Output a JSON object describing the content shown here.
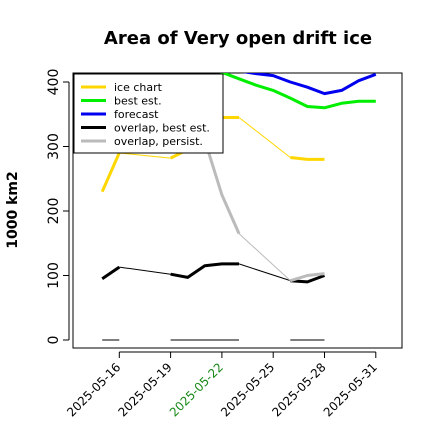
{
  "chart_data": {
    "type": "line",
    "title": "Area of Very open drift ice",
    "ylabel": "1000 km2",
    "xlabel": "",
    "ylim": [
      0,
      420
    ],
    "yticks": [
      0,
      100,
      200,
      300,
      400
    ],
    "xlim": [
      "2025-05-13",
      "2025-06-01"
    ],
    "xticks": [
      {
        "label": "2025-05-16",
        "color": "#000000"
      },
      {
        "label": "2025-05-19",
        "color": "#000000"
      },
      {
        "label": "2025-05-22",
        "color": "#1a8a1a"
      },
      {
        "label": "2025-05-25",
        "color": "#000000"
      },
      {
        "label": "2025-05-28",
        "color": "#000000"
      },
      {
        "label": "2025-05-31",
        "color": "#000000"
      }
    ],
    "legend_position": "top-left",
    "series": [
      {
        "name": "ice chart",
        "color": "#ffd700",
        "width": 3,
        "segments": [
          [
            [
              "2025-05-15",
              230
            ],
            [
              "2025-05-16",
              290
            ]
          ],
          [
            [
              "2025-05-19",
              282
            ],
            [
              "2025-05-20",
              295
            ]
          ],
          [
            [
              "2025-05-22",
              345
            ],
            [
              "2025-05-23",
              345
            ]
          ],
          [
            [
              "2025-05-26",
              283
            ],
            [
              "2025-05-27",
              280
            ],
            [
              "2025-05-28",
              280
            ]
          ]
        ],
        "connectors": true
      },
      {
        "name": "best est.",
        "color": "#00ee00",
        "width": 3,
        "segments": [
          [
            [
              "2025-05-21",
              425
            ],
            [
              "2025-05-22",
              415
            ],
            [
              "2025-05-23",
              405
            ],
            [
              "2025-05-24",
              395
            ],
            [
              "2025-05-25",
              387
            ],
            [
              "2025-05-26",
              375
            ],
            [
              "2025-05-27",
              362
            ],
            [
              "2025-05-28",
              360
            ],
            [
              "2025-05-29",
              367
            ],
            [
              "2025-05-30",
              370
            ],
            [
              "2025-05-31",
              370
            ]
          ]
        ],
        "connectors": false
      },
      {
        "name": "forecast",
        "color": "#0000ee",
        "width": 3,
        "segments": [
          [
            [
              "2025-05-21",
              430
            ],
            [
              "2025-05-22",
              425
            ],
            [
              "2025-05-23",
              417
            ],
            [
              "2025-05-24",
              413
            ],
            [
              "2025-05-25",
              410
            ],
            [
              "2025-05-26",
              400
            ],
            [
              "2025-05-27",
              392
            ],
            [
              "2025-05-28",
              382
            ],
            [
              "2025-05-29",
              387
            ],
            [
              "2025-05-30",
              402
            ],
            [
              "2025-05-31",
              412
            ]
          ]
        ],
        "connectors": false
      },
      {
        "name": "overlap, best est.",
        "color": "#000000",
        "width": 3,
        "segments": [
          [
            [
              "2025-05-15",
              95
            ],
            [
              "2025-05-16",
              113
            ]
          ],
          [
            [
              "2025-05-19",
              102
            ],
            [
              "2025-05-20",
              97
            ],
            [
              "2025-05-21",
              115
            ],
            [
              "2025-05-22",
              118
            ],
            [
              "2025-05-23",
              118
            ]
          ],
          [
            [
              "2025-05-26",
              92
            ],
            [
              "2025-05-27",
              90
            ],
            [
              "2025-05-28",
              100
            ]
          ]
        ],
        "connectors": true
      },
      {
        "name": "overlap, persist.",
        "color": "#bbbbbb",
        "width": 3,
        "segments": [
          [
            [
              "2025-05-21",
              310
            ],
            [
              "2025-05-22",
              225
            ],
            [
              "2025-05-23",
              165
            ]
          ],
          [
            [
              "2025-05-26",
              92
            ],
            [
              "2025-05-27",
              100
            ],
            [
              "2025-05-28",
              103
            ]
          ]
        ],
        "connectors": true
      }
    ],
    "baseline_segments": {
      "color": "#555555",
      "value": 0,
      "ranges": [
        [
          "2025-05-15",
          "2025-05-16"
        ],
        [
          "2025-05-19",
          "2025-05-23"
        ],
        [
          "2025-05-26",
          "2025-05-28"
        ]
      ]
    }
  }
}
